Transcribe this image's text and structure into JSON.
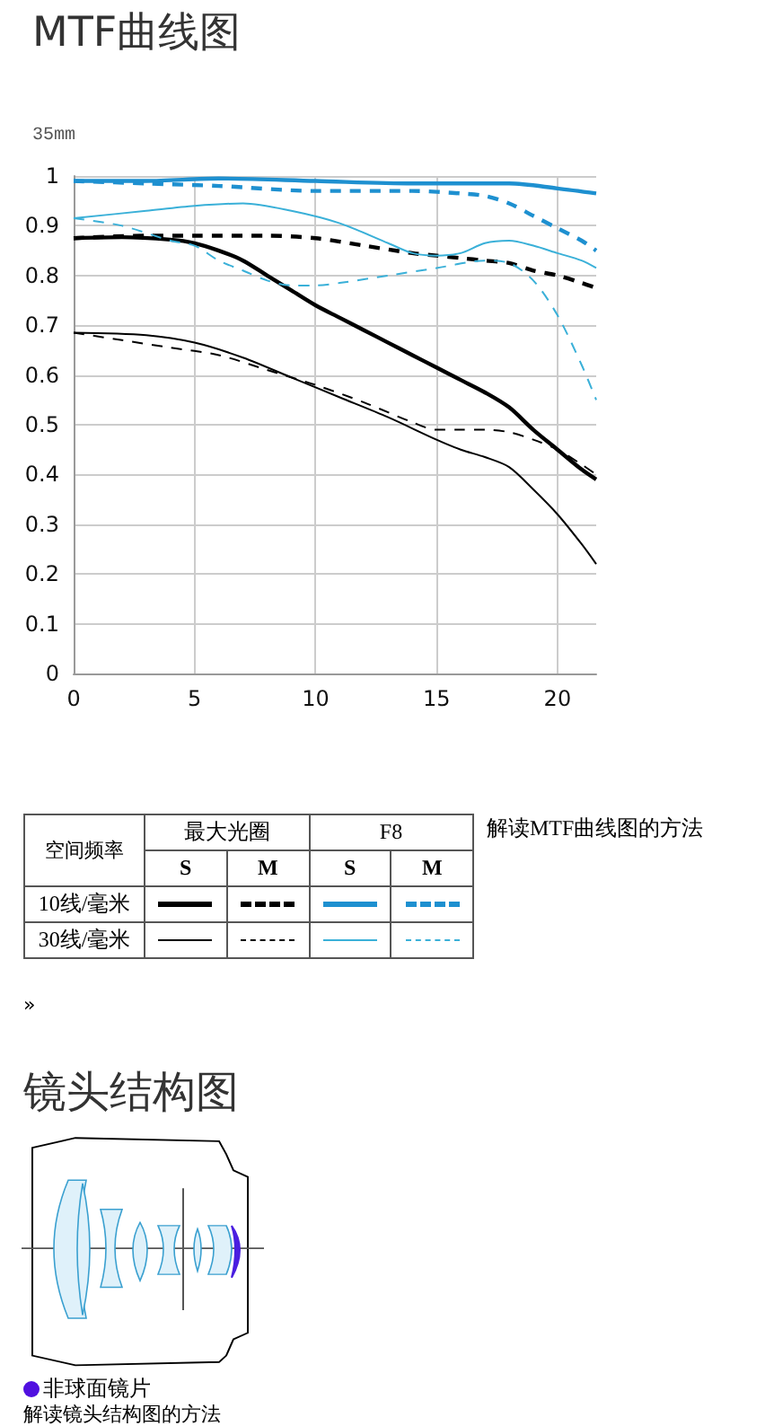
{
  "chart_data": {
    "type": "line",
    "title": "MTF曲线图",
    "subtitle": "35mm",
    "legend_title": "空间频率",
    "annotations": [
      "解读MTF曲线图的方法",
      "»",
      "镜头结构图",
      "非球面镜片",
      "解读镜头结构图的方法",
      "最大光圈",
      "F8",
      "S",
      "M",
      "10线/毫米",
      "30线/毫米"
    ],
    "xlim": [
      0,
      21.6
    ],
    "xticks": [
      0,
      5,
      10,
      15,
      20
    ],
    "ylim": [
      0,
      1
    ],
    "yticks": [
      0,
      0.1,
      0.2,
      0.3,
      0.4,
      0.5,
      0.6,
      0.7,
      0.8,
      0.9,
      1
    ],
    "grid": true,
    "marker": "none",
    "series": [
      {
        "color": "#000000",
        "line_style": "solid",
        "x": [
          0,
          2,
          4,
          5,
          6,
          7,
          8,
          9,
          10,
          11,
          12,
          13,
          14,
          15,
          16,
          17,
          18,
          19,
          20,
          21,
          21.6
        ],
        "values": [
          0.875,
          0.877,
          0.872,
          0.865,
          0.85,
          0.83,
          0.8,
          0.77,
          0.74,
          0.715,
          0.69,
          0.665,
          0.64,
          0.615,
          0.59,
          0.565,
          0.535,
          0.49,
          0.45,
          0.41,
          0.39
        ]
      },
      {
        "color": "#000000",
        "line_style": "dashed",
        "x": [
          0,
          3,
          5,
          8,
          10,
          12,
          14,
          15,
          16,
          17,
          18,
          19,
          20,
          21,
          21.6
        ],
        "values": [
          0.875,
          0.88,
          0.88,
          0.88,
          0.875,
          0.86,
          0.845,
          0.84,
          0.835,
          0.83,
          0.825,
          0.81,
          0.8,
          0.785,
          0.775
        ]
      },
      {
        "color": "#1e90d0",
        "line_style": "solid",
        "x": [
          0,
          3,
          6,
          10,
          14,
          16,
          18,
          20,
          21.6
        ],
        "values": [
          0.99,
          0.99,
          0.995,
          0.99,
          0.985,
          0.985,
          0.985,
          0.975,
          0.965
        ]
      },
      {
        "color": "#1e90d0",
        "line_style": "dashed",
        "x": [
          0,
          3,
          6,
          10,
          14,
          16,
          17,
          18,
          19,
          20,
          21,
          21.6
        ],
        "values": [
          0.99,
          0.985,
          0.98,
          0.97,
          0.97,
          0.965,
          0.96,
          0.945,
          0.92,
          0.895,
          0.87,
          0.85
        ]
      },
      {
        "color": "#000000",
        "line_style": "solid",
        "x": [
          0,
          3,
          5,
          7,
          9,
          11,
          13,
          15,
          16,
          17,
          18,
          19,
          20,
          21,
          21.6
        ],
        "values": [
          0.685,
          0.68,
          0.665,
          0.635,
          0.595,
          0.555,
          0.515,
          0.47,
          0.45,
          0.435,
          0.415,
          0.37,
          0.32,
          0.26,
          0.22
        ]
      },
      {
        "color": "#000000",
        "line_style": "dashed",
        "x": [
          0,
          2,
          4,
          6,
          8,
          10,
          12,
          14,
          15,
          16,
          17,
          18,
          19,
          20,
          21,
          21.6
        ],
        "values": [
          0.685,
          0.67,
          0.655,
          0.64,
          0.61,
          0.58,
          0.545,
          0.505,
          0.49,
          0.49,
          0.49,
          0.485,
          0.47,
          0.45,
          0.42,
          0.4
        ]
      },
      {
        "color": "#3ab0d8",
        "line_style": "solid",
        "x": [
          0,
          3,
          5,
          7,
          9,
          11,
          13,
          14,
          15,
          16,
          17,
          18,
          19,
          20,
          21,
          21.6
        ],
        "values": [
          0.915,
          0.93,
          0.94,
          0.945,
          0.93,
          0.905,
          0.865,
          0.845,
          0.84,
          0.845,
          0.865,
          0.87,
          0.86,
          0.845,
          0.83,
          0.815
        ]
      },
      {
        "color": "#3ab0d8",
        "line_style": "dashed",
        "x": [
          0,
          2,
          4,
          5,
          6,
          7,
          8,
          9,
          10,
          11,
          13,
          15,
          17,
          18,
          19,
          20,
          21,
          21.6
        ],
        "values": [
          0.915,
          0.9,
          0.87,
          0.86,
          0.83,
          0.81,
          0.79,
          0.78,
          0.78,
          0.785,
          0.8,
          0.815,
          0.83,
          0.825,
          0.79,
          0.72,
          0.62,
          0.55
        ]
      }
    ]
  }
}
